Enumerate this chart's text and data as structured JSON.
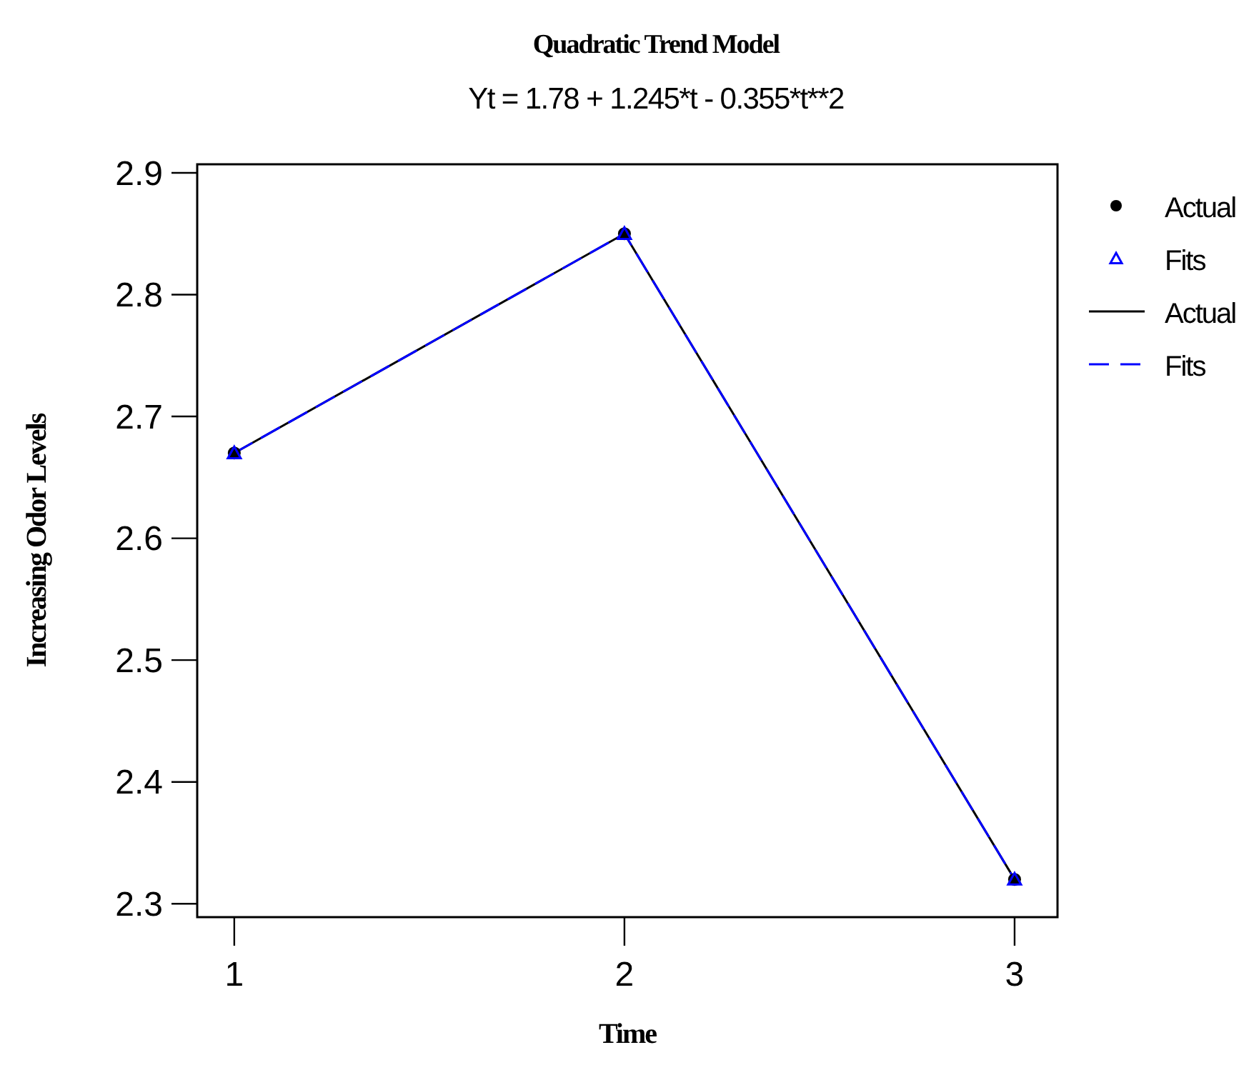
{
  "chart_data": {
    "type": "line",
    "title": "Quadratic Trend Model",
    "subtitle": "Yt = 1.78 + 1.245*t  - 0.355*t**2",
    "xlabel": "Time",
    "ylabel": "Increasing Odor Levels",
    "x": [
      1,
      2,
      3
    ],
    "xlim": [
      0.905,
      3.11
    ],
    "xticks": [
      1,
      2,
      3
    ],
    "ylim": [
      2.289,
      2.907
    ],
    "yticks": [
      2.3,
      2.4,
      2.5,
      2.6,
      2.7,
      2.8,
      2.9
    ],
    "grid": false,
    "legend": "right",
    "series": [
      {
        "name": "Actual",
        "type": "scatter",
        "marker": "circle",
        "color": "#000000",
        "values": [
          2.67,
          2.85,
          2.32
        ]
      },
      {
        "name": "Fits",
        "type": "scatter",
        "marker": "triangle",
        "color": "#0000ff",
        "values": [
          2.67,
          2.85,
          2.32
        ]
      },
      {
        "name": "Actual",
        "type": "line",
        "line_style": "solid",
        "color": "#000000",
        "values": [
          2.67,
          2.85,
          2.32
        ]
      },
      {
        "name": "Fits",
        "type": "line",
        "line_style": "dashed",
        "color": "#0000ff",
        "values": [
          2.67,
          2.85,
          2.32
        ]
      }
    ]
  }
}
